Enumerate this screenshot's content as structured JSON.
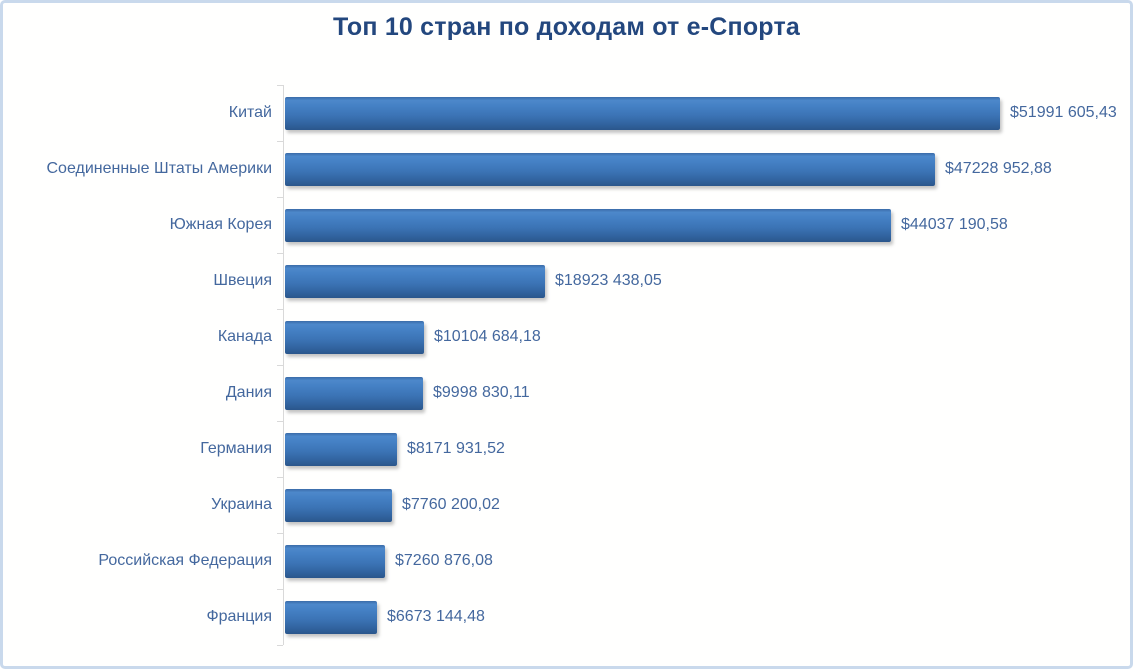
{
  "page": {
    "background_color": "#FFFFFE",
    "border_color": "#C9D9EC"
  },
  "chart_data": {
    "type": "bar",
    "orientation": "horizontal",
    "title": "Топ 10 стран по доходам от е-Спорта",
    "categories": [
      "Китай",
      "Соединенные Штаты Америки",
      "Южная Корея",
      "Швеция",
      "Канада",
      "Дания",
      "Германия",
      "Украина",
      "Российская Федерация",
      "Франция"
    ],
    "values": [
      51991605.43,
      47228952.88,
      44037190.58,
      18923438.05,
      10104684.18,
      9998830.11,
      8171931.52,
      7760200.02,
      7260876.08,
      6673144.48
    ],
    "value_labels": [
      "$51991 605,43",
      "$47228 952,88",
      "$44037 190,58",
      "$18923 438,05",
      "$10104 684,18",
      "$9998 830,11",
      "$8171 931,52",
      "$7760 200,02",
      "$7260 876,08",
      "$6673 144,48"
    ],
    "xlabel": "",
    "ylabel": "",
    "xlim": [
      0,
      51991605.43
    ],
    "grid": false,
    "legend": false,
    "value_label_position": "outside-end",
    "bar_color": "#3C74B6",
    "title_color": "#23477E",
    "label_color": "#44689E",
    "axis_color": "#D9D9D9"
  }
}
